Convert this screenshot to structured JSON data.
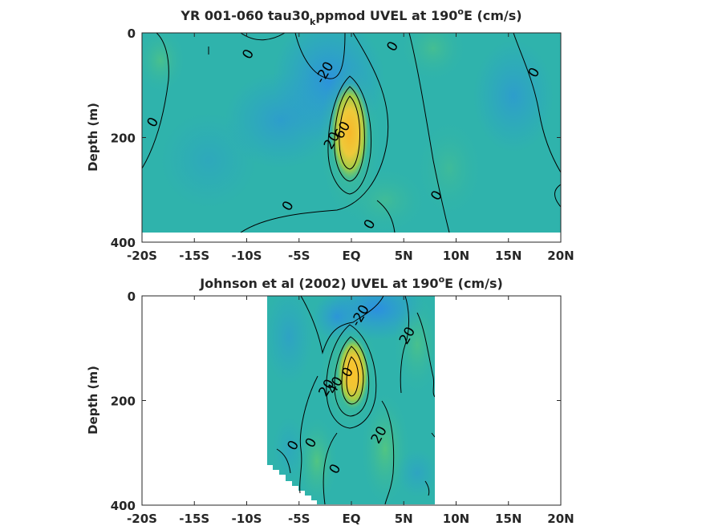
{
  "chart_data": [
    {
      "type": "heatmap",
      "title_parts": [
        "YR 001-060 tau30",
        "k",
        "ppmod UVEL at 190",
        "o",
        "E (cm/s)"
      ],
      "ylabel": "Depth (m)",
      "xlabel": "",
      "x_tick_labels": [
        "-20S",
        "-15S",
        "-10S",
        "-5S",
        "EQ",
        "5N",
        "10N",
        "15N",
        "20N"
      ],
      "x_tick_values": [
        -20,
        -15,
        -10,
        -5,
        0,
        5,
        10,
        15,
        20
      ],
      "y_tick_labels": [
        "0",
        "200",
        "400"
      ],
      "y_tick_values": [
        0,
        200,
        400
      ],
      "xlim": [
        -20,
        20
      ],
      "ylim": [
        400,
        0
      ],
      "data_xlim": [
        -20,
        20
      ],
      "data_ylim": [
        0,
        380
      ],
      "jet_core": {
        "latitude": 0.2,
        "depth": 160,
        "max_speed": 60
      },
      "contour_levels": [
        -20,
        0,
        20,
        40,
        60
      ],
      "contour_labels": [
        {
          "text": "0",
          "x": -9.5,
          "y": 45
        },
        {
          "text": "0",
          "x": 4.3,
          "y": 30
        },
        {
          "text": "0",
          "x": 17.8,
          "y": 80
        },
        {
          "text": "0",
          "x": -18.6,
          "y": 175
        },
        {
          "text": "0",
          "x": 8.5,
          "y": 315
        },
        {
          "text": "0",
          "x": -5.7,
          "y": 335
        },
        {
          "text": "0",
          "x": 2.1,
          "y": 370
        },
        {
          "text": "-20",
          "x": -2.2,
          "y": 80
        },
        {
          "text": "20",
          "x": -1.5,
          "y": 210
        },
        {
          "text": "60",
          "x": -0.5,
          "y": 190
        }
      ]
    },
    {
      "type": "heatmap",
      "title_parts": [
        "Johnson et al (2002) UVEL at 190",
        "o",
        "E (cm/s)"
      ],
      "ylabel": "Depth (m)",
      "xlabel": "",
      "x_tick_labels": [
        "-20S",
        "-15S",
        "-10S",
        "-5S",
        "EQ",
        "5N",
        "10N",
        "15N",
        "20N"
      ],
      "x_tick_values": [
        -20,
        -15,
        -10,
        -5,
        0,
        5,
        10,
        15,
        20
      ],
      "y_tick_labels": [
        "0",
        "200",
        "400"
      ],
      "y_tick_values": [
        0,
        200,
        400
      ],
      "xlim": [
        -20,
        20
      ],
      "ylim": [
        400,
        0
      ],
      "data_xlim": [
        -8,
        8
      ],
      "data_ylim": [
        0,
        400
      ],
      "jet_core": {
        "latitude": 0.3,
        "depth": 150,
        "max_speed": 80
      },
      "contour_levels": [
        -20,
        0,
        20,
        40,
        60
      ],
      "contour_labels": [
        {
          "text": "-20",
          "x": 1.2,
          "y": 42
        },
        {
          "text": "20",
          "x": 5.7,
          "y": 80
        },
        {
          "text": "0",
          "x": 0,
          "y": 150
        },
        {
          "text": "20",
          "x": -2,
          "y": 180
        },
        {
          "text": "40",
          "x": -1.2,
          "y": 175
        },
        {
          "text": "0",
          "x": -5.2,
          "y": 290
        },
        {
          "text": "0",
          "x": -3.5,
          "y": 285
        },
        {
          "text": "20",
          "x": 3,
          "y": 270
        },
        {
          "text": "0",
          "x": -1.2,
          "y": 335
        }
      ]
    }
  ]
}
